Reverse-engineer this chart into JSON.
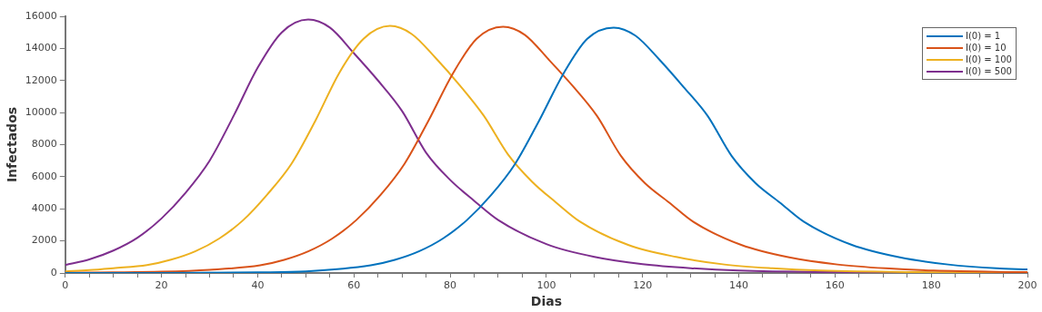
{
  "chart_data": {
    "type": "line",
    "xlabel": "Dias",
    "ylabel": "Infectados",
    "legend": "top right",
    "xlim": [
      0,
      200
    ],
    "ylim": [
      0,
      16000
    ],
    "xticks": [
      0,
      {
        "value": 5,
        "label": null
      },
      {
        "value": 10,
        "label": null
      },
      {
        "value": 15,
        "label": null
      },
      20,
      {
        "value": 25,
        "label": null
      },
      {
        "value": 30,
        "label": null
      },
      {
        "value": 35,
        "label": null
      },
      40,
      {
        "value": 45,
        "label": null
      },
      {
        "value": 50,
        "label": null
      },
      {
        "value": 55,
        "label": null
      },
      60,
      {
        "value": 65,
        "label": null
      },
      {
        "value": 70,
        "label": null
      },
      {
        "value": 75,
        "label": null
      },
      80,
      {
        "value": 85,
        "label": null
      },
      {
        "value": 90,
        "label": null
      },
      {
        "value": 95,
        "label": null
      },
      100,
      {
        "value": 105,
        "label": null
      },
      {
        "value": 110,
        "label": null
      },
      {
        "value": 115,
        "label": null
      },
      120,
      {
        "value": 125,
        "label": null
      },
      {
        "value": 130,
        "label": null
      },
      {
        "value": 135,
        "label": null
      },
      140,
      {
        "value": 145,
        "label": null
      },
      {
        "value": 150,
        "label": null
      },
      {
        "value": 155,
        "label": null
      },
      160,
      {
        "value": 165,
        "label": null
      },
      {
        "value": 170,
        "label": null
      },
      {
        "value": 175,
        "label": null
      },
      180,
      {
        "value": 185,
        "label": null
      },
      {
        "value": 190,
        "label": null
      },
      {
        "value": 195,
        "label": null
      },
      200
    ],
    "yticks": [
      0,
      2000,
      4000,
      6000,
      8000,
      10000,
      12000,
      14000,
      16000
    ],
    "series": [
      {
        "name": "I(0) = 1",
        "color": "#0072bd",
        "x": [
          0,
          20,
          40,
          50,
          63.5,
          68.5,
          73.5,
          78.5,
          83.5,
          88.5,
          93.5,
          98.5,
          103.5,
          108.5,
          114,
          118.5,
          123.5,
          128.5,
          133.5,
          138.5,
          143.5,
          148.5,
          153.5,
          163.5,
          173.5,
          183.5,
          193.5,
          200
        ],
        "values": [
          0,
          0,
          40,
          100,
          480,
          820,
          1350,
          2150,
          3300,
          4850,
          6800,
          9500,
          12400,
          14600,
          15300,
          14800,
          13300,
          11600,
          9800,
          7300,
          5600,
          4400,
          3200,
          1750,
          970,
          530,
          290,
          220
        ]
      },
      {
        "name": "I(0) = 10",
        "color": "#d95319",
        "x": [
          0,
          10,
          20,
          30,
          40.5,
          45.5,
          50.5,
          55.5,
          60.5,
          65.5,
          70.5,
          75.5,
          80.5,
          85.5,
          91,
          95.5,
          100.5,
          105.5,
          110.5,
          115.5,
          120.5,
          125.5,
          130.5,
          140.5,
          150.5,
          160.5,
          170.5,
          180.5,
          200
        ],
        "values": [
          20,
          40,
          80,
          200,
          480,
          820,
          1350,
          2150,
          3300,
          4850,
          6800,
          9500,
          12400,
          14600,
          15350,
          14850,
          13300,
          11650,
          9800,
          7300,
          5600,
          4400,
          3200,
          1750,
          970,
          530,
          290,
          150,
          50
        ]
      },
      {
        "name": "I(0) = 100",
        "color": "#edb120",
        "x": [
          0,
          5,
          10,
          17,
          22,
          27,
          32,
          37,
          42,
          47,
          52,
          57,
          62,
          67.5,
          72,
          77,
          82,
          87,
          92,
          97,
          102,
          107,
          117,
          127,
          137,
          147,
          157,
          177,
          200
        ],
        "values": [
          100,
          180,
          300,
          490,
          830,
          1350,
          2150,
          3300,
          4900,
          6800,
          9500,
          12500,
          14600,
          15400,
          14900,
          13400,
          11700,
          9800,
          7400,
          5700,
          4400,
          3200,
          1750,
          1000,
          530,
          290,
          150,
          50,
          20
        ]
      },
      {
        "name": "I(0) = 500",
        "color": "#7e2f8e",
        "x": [
          0,
          5,
          10,
          15,
          20,
          25,
          30,
          35,
          40,
          45,
          50.5,
          55,
          60,
          65,
          70,
          75,
          80,
          85,
          90,
          100,
          110,
          120,
          130,
          140,
          160,
          180,
          200
        ],
        "values": [
          500,
          850,
          1400,
          2200,
          3400,
          5000,
          7000,
          9800,
          12800,
          15000,
          15800,
          15300,
          13700,
          12000,
          10100,
          7500,
          5800,
          4500,
          3300,
          1800,
          1000,
          550,
          300,
          150,
          50,
          20,
          0
        ]
      }
    ]
  }
}
